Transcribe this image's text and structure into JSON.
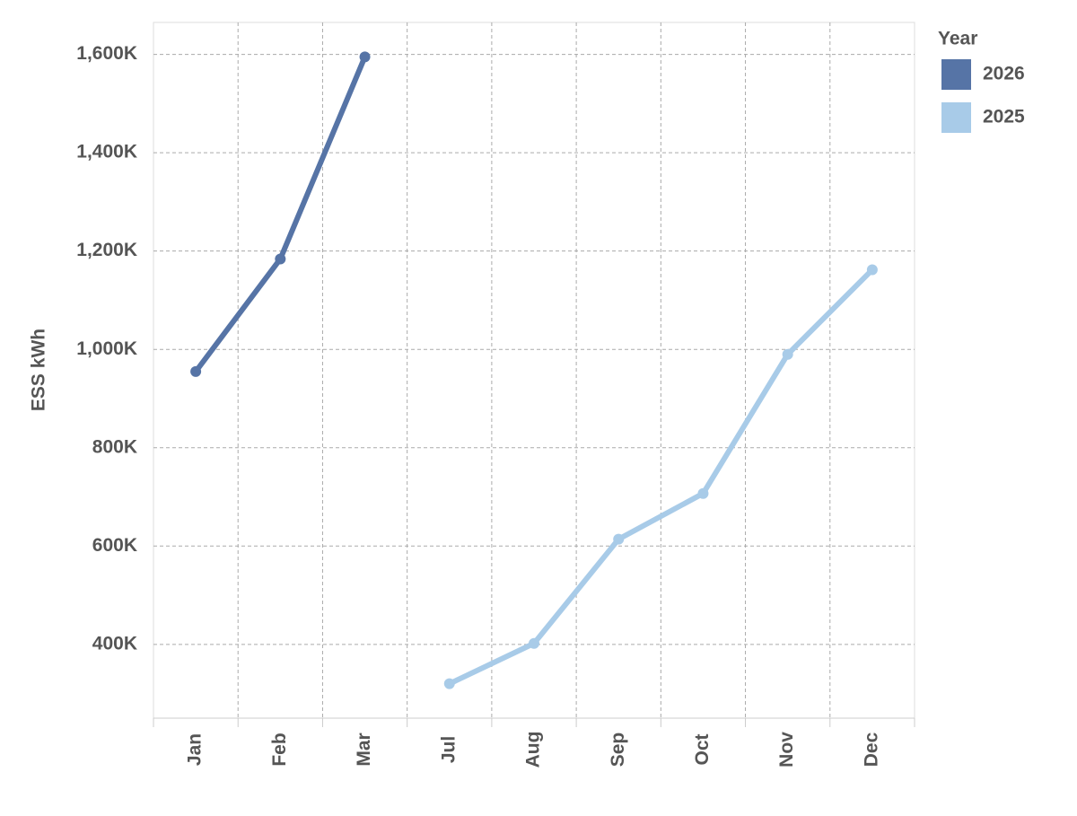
{
  "chart_data": {
    "type": "line",
    "y_label": "ESS kWh",
    "legend_title": "Year",
    "categories": [
      "Jan",
      "Feb",
      "Mar",
      "Jul",
      "Aug",
      "Sep",
      "Oct",
      "Nov",
      "Dec"
    ],
    "series": [
      {
        "name": "2026",
        "color": "#5674a6",
        "values": [
          955000,
          1184000,
          1595000,
          null,
          null,
          null,
          null,
          null,
          null
        ]
      },
      {
        "name": "2025",
        "color": "#a8cbe8",
        "values": [
          null,
          null,
          null,
          320000,
          402000,
          614000,
          707000,
          990000,
          1162000
        ]
      }
    ],
    "ylim": [
      250000,
      1665000
    ],
    "yticks": [
      {
        "value": 400000,
        "label": "400K"
      },
      {
        "value": 600000,
        "label": "600K"
      },
      {
        "value": 800000,
        "label": "800K"
      },
      {
        "value": 1000000,
        "label": "1,000K"
      },
      {
        "value": 1200000,
        "label": "1,200K"
      },
      {
        "value": 1400000,
        "label": "1,400K"
      },
      {
        "value": 1600000,
        "label": "1,600K"
      }
    ],
    "grid": true,
    "legend": "top-right"
  }
}
